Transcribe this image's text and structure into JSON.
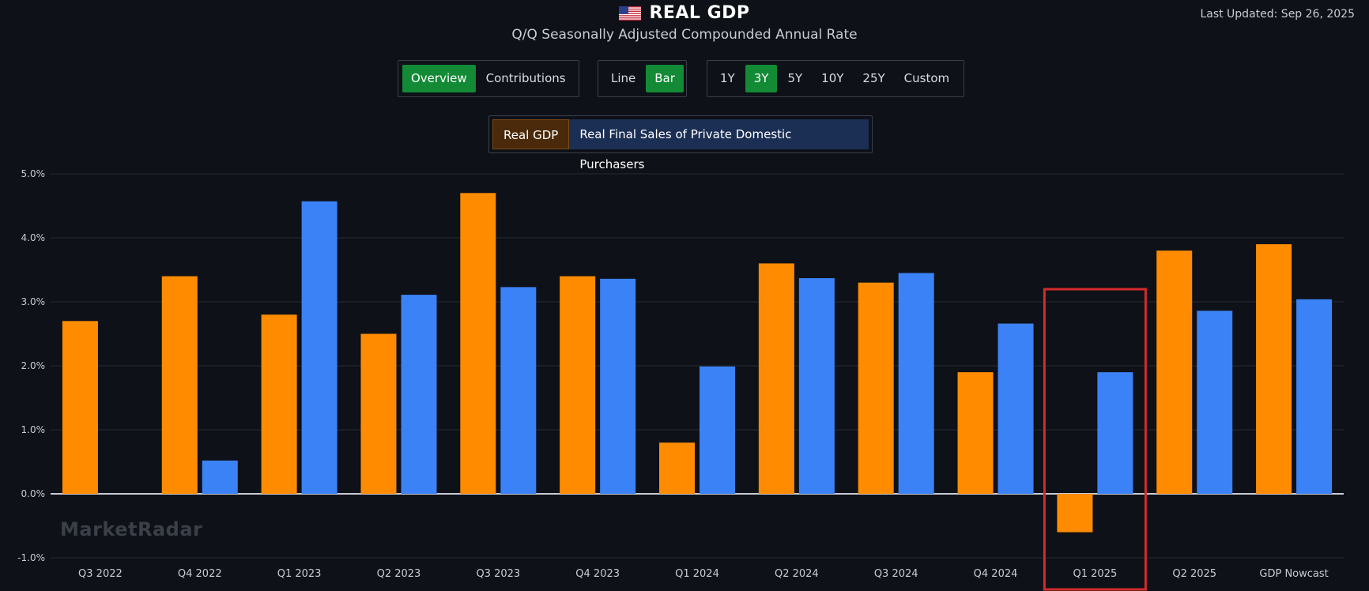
{
  "header": {
    "title": "REAL GDP",
    "subtitle": "Q/Q Seasonally Adjusted Compounded Annual Rate",
    "last_updated": "Last Updated: Sep 26, 2025",
    "flag_icon": "us-flag-icon"
  },
  "controls": {
    "view_group": [
      {
        "label": "Overview",
        "active": true
      },
      {
        "label": "Contributions",
        "active": false
      }
    ],
    "type_group": [
      {
        "label": "Line",
        "active": false
      },
      {
        "label": "Bar",
        "active": true
      }
    ],
    "range_group": [
      {
        "label": "1Y",
        "active": false
      },
      {
        "label": "3Y",
        "active": true
      },
      {
        "label": "5Y",
        "active": false
      },
      {
        "label": "10Y",
        "active": false
      },
      {
        "label": "25Y",
        "active": false
      },
      {
        "label": "Custom",
        "active": false
      }
    ],
    "series_toggle": {
      "gdp_label": "Real GDP",
      "final_sales_label": "Real Final Sales of Private Domestic Purchasers"
    }
  },
  "watermark": "MarketRadar",
  "colors": {
    "background": "#0e1117",
    "gdp": "#ff8c00",
    "final_sales": "#3b82f6",
    "active_button": "#138a35",
    "highlight_box": "#d42b2b"
  },
  "chart_data": {
    "type": "bar",
    "categories": [
      "Q3 2022",
      "Q4 2022",
      "Q1 2023",
      "Q2 2023",
      "Q3 2023",
      "Q4 2023",
      "Q1 2024",
      "Q2 2024",
      "Q3 2024",
      "Q4 2024",
      "Q1 2025",
      "Q2 2025",
      "GDP Nowcast"
    ],
    "series": [
      {
        "name": "Real GDP",
        "values": [
          2.7,
          3.4,
          2.8,
          2.5,
          4.7,
          3.4,
          0.8,
          3.6,
          3.3,
          1.9,
          -0.6,
          3.8,
          3.9
        ]
      },
      {
        "name": "Real Final Sales of Private Domestic Purchasers",
        "values": [
          null,
          0.52,
          4.57,
          3.11,
          3.23,
          3.36,
          1.99,
          3.37,
          3.45,
          2.66,
          1.9,
          2.86,
          3.04
        ]
      }
    ],
    "ylim": [
      -1.0,
      5.0
    ],
    "yticks": [
      5.0,
      4.0,
      3.0,
      2.0,
      1.0,
      0.0,
      -1.0
    ],
    "ytick_labels": [
      "5.0%",
      "4.0%",
      "3.0%",
      "2.0%",
      "1.0%",
      "0.0%",
      "-1.0%"
    ],
    "grid": true,
    "highlight_category": "Q1 2025"
  }
}
